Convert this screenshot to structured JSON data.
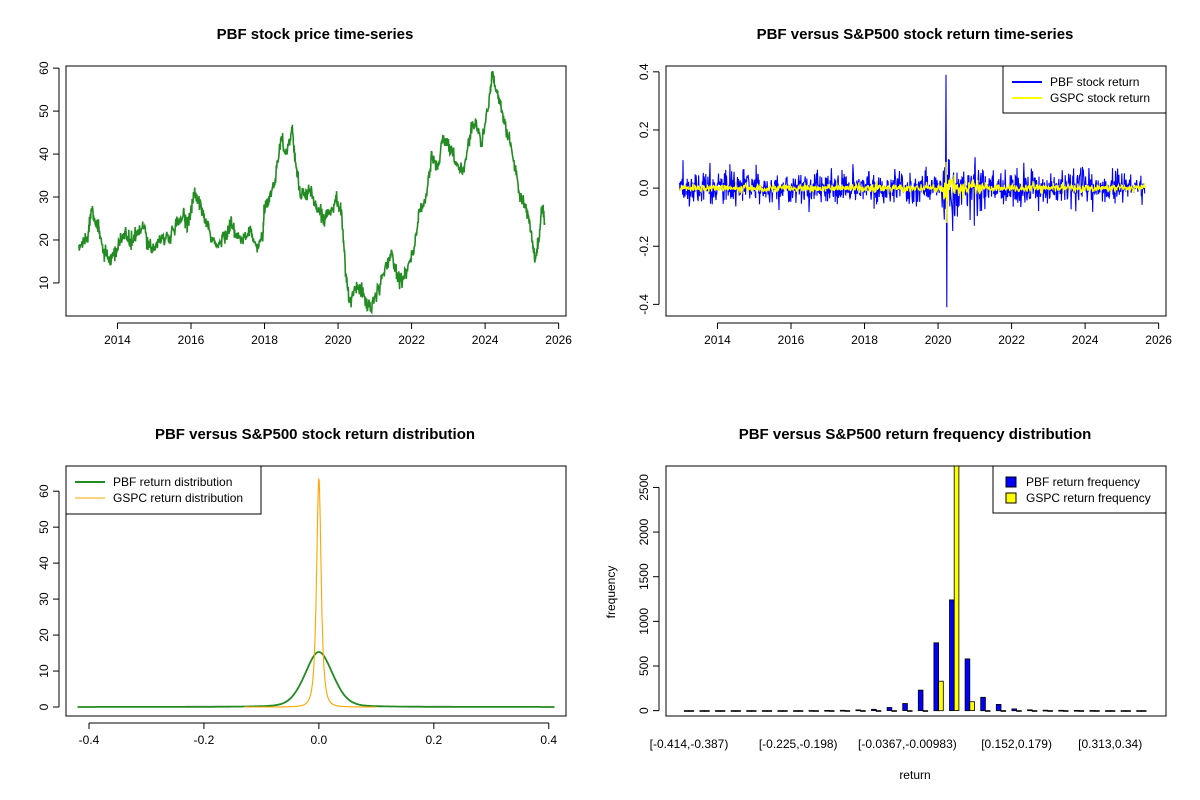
{
  "chart_data": [
    {
      "type": "line",
      "title": "PBF stock price time-series",
      "xlabel": "",
      "ylabel": "",
      "xlim": [
        2012.6,
        2026.2
      ],
      "ylim": [
        2.3,
        60.5
      ],
      "x_ticks": [
        2014,
        2016,
        2018,
        2020,
        2022,
        2024,
        2026
      ],
      "y_ticks": [
        10,
        20,
        30,
        40,
        50,
        60
      ],
      "grid": false,
      "colors": {
        "series": "#228B22"
      },
      "series": [
        {
          "anchors": [
            [
              2012.95,
              18
            ],
            [
              2013.1,
              20
            ],
            [
              2013.2,
              21
            ],
            [
              2013.3,
              28
            ],
            [
              2013.42,
              24
            ],
            [
              2013.5,
              22
            ],
            [
              2013.6,
              18
            ],
            [
              2013.75,
              15
            ],
            [
              2013.9,
              16
            ],
            [
              2014.0,
              18
            ],
            [
              2014.2,
              22
            ],
            [
              2014.35,
              19
            ],
            [
              2014.5,
              21
            ],
            [
              2014.7,
              23
            ],
            [
              2014.85,
              19
            ],
            [
              2015.0,
              18
            ],
            [
              2015.2,
              21
            ],
            [
              2015.4,
              20
            ],
            [
              2015.6,
              23
            ],
            [
              2015.8,
              26
            ],
            [
              2015.9,
              24
            ],
            [
              2016.0,
              27
            ],
            [
              2016.1,
              31
            ],
            [
              2016.25,
              28
            ],
            [
              2016.4,
              24
            ],
            [
              2016.5,
              22
            ],
            [
              2016.7,
              18
            ],
            [
              2016.9,
              21
            ],
            [
              2017.0,
              22
            ],
            [
              2017.1,
              24
            ],
            [
              2017.2,
              21
            ],
            [
              2017.4,
              20
            ],
            [
              2017.6,
              22
            ],
            [
              2017.8,
              18
            ],
            [
              2017.95,
              21
            ],
            [
              2018.0,
              27
            ],
            [
              2018.15,
              30
            ],
            [
              2018.3,
              35
            ],
            [
              2018.45,
              44
            ],
            [
              2018.6,
              40
            ],
            [
              2018.75,
              46
            ],
            [
              2018.85,
              37
            ],
            [
              2019.0,
              30
            ],
            [
              2019.2,
              32
            ],
            [
              2019.4,
              28
            ],
            [
              2019.6,
              25
            ],
            [
              2019.8,
              27
            ],
            [
              2019.95,
              30
            ],
            [
              2020.1,
              26
            ],
            [
              2020.2,
              13
            ],
            [
              2020.3,
              6
            ],
            [
              2020.45,
              8
            ],
            [
              2020.6,
              9
            ],
            [
              2020.75,
              6
            ],
            [
              2020.9,
              4
            ],
            [
              2021.1,
              8
            ],
            [
              2021.3,
              14
            ],
            [
              2021.45,
              17
            ],
            [
              2021.6,
              12
            ],
            [
              2021.75,
              11
            ],
            [
              2021.9,
              14
            ],
            [
              2022.05,
              17
            ],
            [
              2022.2,
              26
            ],
            [
              2022.4,
              30
            ],
            [
              2022.55,
              40
            ],
            [
              2022.7,
              36
            ],
            [
              2022.85,
              44
            ],
            [
              2023.0,
              42
            ],
            [
              2023.2,
              38
            ],
            [
              2023.4,
              36
            ],
            [
              2023.6,
              45
            ],
            [
              2023.75,
              48
            ],
            [
              2023.9,
              42
            ],
            [
              2024.1,
              52
            ],
            [
              2024.2,
              59
            ],
            [
              2024.3,
              55
            ],
            [
              2024.45,
              50
            ],
            [
              2024.6,
              45
            ],
            [
              2024.8,
              38
            ],
            [
              2024.95,
              30
            ],
            [
              2025.1,
              28
            ],
            [
              2025.25,
              22
            ],
            [
              2025.35,
              15
            ],
            [
              2025.45,
              19
            ],
            [
              2025.55,
              28
            ],
            [
              2025.62,
              24
            ]
          ]
        }
      ]
    },
    {
      "type": "line",
      "title": "PBF versus S&P500 stock return time-series",
      "xlabel": "",
      "ylabel": "",
      "xlim": [
        2012.6,
        2026.2
      ],
      "ylim": [
        -0.44,
        0.42
      ],
      "x_ticks": [
        2014,
        2016,
        2018,
        2020,
        2022,
        2024,
        2026
      ],
      "y_ticks": [
        -0.4,
        -0.2,
        0.0,
        0.2,
        0.4
      ],
      "y_tick_labels": [
        "-0.4",
        "-0.2",
        "0.0",
        "0.2",
        "0.4"
      ],
      "grid": false,
      "legend": "top-right",
      "series": [
        {
          "name": "PBF stock return",
          "color": "#0000FF",
          "band": 0.05,
          "max": 0.39,
          "min": -0.41
        },
        {
          "name": "GSPC stock return",
          "color": "#FFFF00",
          "band": 0.012,
          "max": 0.09,
          "min": -0.12
        }
      ]
    },
    {
      "type": "line",
      "title": "PBF versus S&P500 stock return distribution",
      "xlabel": "",
      "ylabel": "",
      "xlim": [
        -0.44,
        0.43
      ],
      "ylim": [
        -2.5,
        67
      ],
      "x_ticks": [
        -0.4,
        -0.2,
        0.0,
        0.2,
        0.4
      ],
      "x_tick_labels": [
        "-0.4",
        "-0.2",
        "0.0",
        "0.2",
        "0.4"
      ],
      "y_ticks": [
        0,
        10,
        20,
        30,
        40,
        50,
        60
      ],
      "grid": false,
      "legend": "top-left",
      "series": [
        {
          "name": "PBF return distribution",
          "color": "#228B22",
          "peak": 15.3,
          "scale": 0.025,
          "x_from": -0.42,
          "x_to": 0.41
        },
        {
          "name": "GSPC return distribution",
          "color": "#FFA500",
          "peak": 63.5,
          "scale": 0.006,
          "x_from": -0.13,
          "x_to": 0.1
        }
      ]
    },
    {
      "type": "bar",
      "title": "PBF versus S&P500 return frequency distribution",
      "xlabel": "return",
      "ylabel": "frequency",
      "ylim": [
        -60,
        2740
      ],
      "y_ticks": [
        0,
        500,
        1000,
        1500,
        2000,
        2500
      ],
      "grid": false,
      "legend": "top-right",
      "categories_labeled": [
        {
          "index": 0,
          "label": "[-0.414,-0.387)"
        },
        {
          "index": 7,
          "label": "[-0.225,-0.198)"
        },
        {
          "index": 14,
          "label": "[-0.0367,-0.00983)"
        },
        {
          "index": 21,
          "label": "[0.152,0.179)"
        },
        {
          "index": 27,
          "label": "[0.313,0.34)"
        }
      ],
      "bin_count": 30,
      "series": [
        {
          "name": "PBF return frequency",
          "color": "#0000FF",
          "values": [
            1,
            0,
            0,
            0,
            0,
            0,
            1,
            1,
            2,
            3,
            4,
            8,
            15,
            35,
            80,
            230,
            760,
            1240,
            580,
            150,
            70,
            20,
            10,
            5,
            4,
            3,
            2,
            1,
            1,
            1
          ]
        },
        {
          "name": "GSPC return frequency",
          "color": "#FFFF00",
          "values": [
            0,
            0,
            0,
            0,
            0,
            0,
            0,
            0,
            0,
            0,
            0,
            0,
            0,
            0,
            0,
            0,
            330,
            2740,
            100,
            0,
            0,
            0,
            0,
            0,
            0,
            0,
            0,
            0,
            0,
            0
          ]
        }
      ]
    }
  ]
}
